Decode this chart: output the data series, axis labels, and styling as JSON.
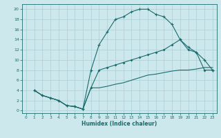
{
  "xlabel": "Humidex (Indice chaleur)",
  "bg_color": "#cce8ec",
  "grid_color": "#aacdd4",
  "line_color": "#1a6b6b",
  "xlim": [
    -0.5,
    23.5
  ],
  "ylim": [
    -0.5,
    21
  ],
  "xticks": [
    0,
    1,
    2,
    3,
    4,
    5,
    6,
    7,
    8,
    9,
    10,
    11,
    12,
    13,
    14,
    15,
    16,
    17,
    18,
    19,
    20,
    21,
    22,
    23
  ],
  "yticks": [
    0,
    2,
    4,
    6,
    8,
    10,
    12,
    14,
    16,
    18,
    20
  ],
  "curve1_x": [
    1,
    2,
    3,
    4,
    5,
    6,
    7,
    8,
    9,
    10,
    11,
    12,
    13,
    14,
    15,
    16,
    17,
    18,
    19,
    20,
    21,
    22,
    23
  ],
  "curve1_y": [
    4,
    3,
    2.5,
    2,
    1,
    0.8,
    0.3,
    8,
    13,
    15.5,
    18,
    18.5,
    19.5,
    20,
    20,
    19,
    18.5,
    17,
    14,
    12.5,
    11.5,
    10,
    8
  ],
  "curve2_x": [
    1,
    2,
    3,
    4,
    5,
    6,
    7,
    8,
    9,
    10,
    11,
    12,
    13,
    14,
    15,
    16,
    17,
    18,
    19,
    20,
    21,
    22,
    23
  ],
  "curve2_y": [
    4,
    3,
    2.5,
    2,
    1,
    0.8,
    0.3,
    4.5,
    8,
    8.5,
    9,
    9.5,
    10,
    10.5,
    11,
    11.5,
    12,
    13,
    14,
    12,
    11.5,
    8,
    8
  ],
  "curve3_x": [
    1,
    2,
    3,
    4,
    5,
    6,
    7,
    8,
    9,
    10,
    11,
    12,
    13,
    14,
    15,
    16,
    17,
    18,
    19,
    20,
    21,
    22,
    23
  ],
  "curve3_y": [
    4,
    3,
    2.5,
    2,
    1,
    0.8,
    0.3,
    4.5,
    4.5,
    4.8,
    5.2,
    5.5,
    6.0,
    6.5,
    7.0,
    7.2,
    7.5,
    7.8,
    8.0,
    8.0,
    8.2,
    8.5,
    8.5
  ]
}
